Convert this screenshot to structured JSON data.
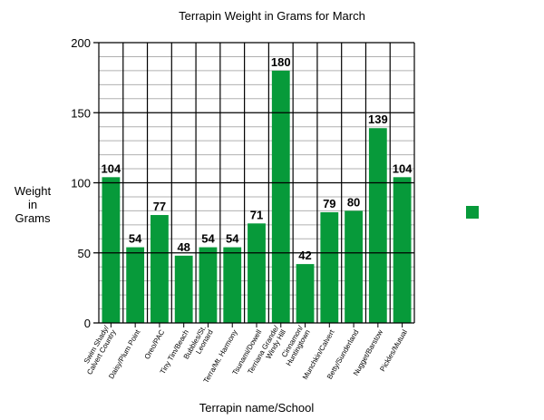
{
  "chart_data": {
    "type": "bar",
    "title": "Terrapin Weight in Grams for March",
    "xlabel": "Terrapin name/School",
    "ylabel": "Weight in Grams",
    "ylabel_lines": [
      "Weight",
      "in",
      "Grams"
    ],
    "ylim": [
      0,
      200
    ],
    "yticks": [
      0,
      50,
      100,
      150,
      200
    ],
    "minor_grid_step": 10,
    "grid": true,
    "bar_color": "#079a3a",
    "legend": {
      "position": "right",
      "entries": [
        ""
      ]
    },
    "categories": [
      "Swim Shady/ Calvert Country",
      "Daisy/Plum Point",
      "Oreo/PAC",
      "Tiny Tim/Beach",
      "Bubbles/St. Leonard",
      "Terra/Mt. Harmony",
      "Tsunami/Dowell",
      "Terriana Grande/ Windy Hill",
      "Cinnamon/ Huntingtown",
      "Munchkin/Calvert",
      "Betty/Sunderland",
      "Nugget/Barstow",
      "Pickles/Mutual"
    ],
    "category_label_lines": [
      [
        "Swim Shady/",
        "Calvert Country"
      ],
      [
        "Daisy/Plum Point"
      ],
      [
        "Oreo/PAC"
      ],
      [
        "Tiny Tim/Beach"
      ],
      [
        "Bubbles/St.",
        "Leonard"
      ],
      [
        "Terra/Mt. Harmony"
      ],
      [
        "Tsunami/Dowell"
      ],
      [
        "Terriana Grande/",
        "Windy Hill"
      ],
      [
        "Cinnamon/",
        "Huntingtown"
      ],
      [
        "Munchkin/Calvert"
      ],
      [
        "Betty/Sunderland"
      ],
      [
        "Nugget/Barstow"
      ],
      [
        "Pickles/Mutual"
      ]
    ],
    "values": [
      104,
      54,
      77,
      48,
      54,
      54,
      71,
      180,
      42,
      79,
      80,
      139,
      104
    ]
  }
}
